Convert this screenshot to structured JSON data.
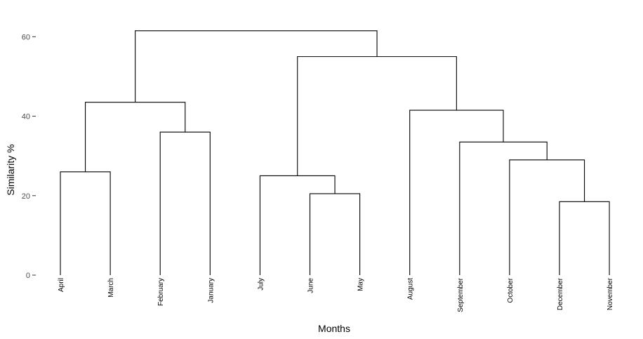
{
  "chart_data": {
    "type": "dendrogram",
    "title": "",
    "xlabel": "Months",
    "ylabel": "Similarity %",
    "ylim": [
      0,
      62
    ],
    "yticks": [
      0,
      20,
      40,
      60
    ],
    "grid": false,
    "legend": "none",
    "line_color": "#000000",
    "leaves": [
      "April",
      "March",
      "February",
      "January",
      "July",
      "June",
      "May",
      "August",
      "September",
      "October",
      "December",
      "November"
    ],
    "merges": [
      {
        "left": "April",
        "right": "March",
        "height": 26
      },
      {
        "left": "February",
        "right": "January",
        "height": 36
      },
      {
        "left": [
          "April",
          "March"
        ],
        "right": [
          "February",
          "January"
        ],
        "height": 43.5
      },
      {
        "left": "June",
        "right": "May",
        "height": 20.5
      },
      {
        "left": "July",
        "right": [
          "June",
          "May"
        ],
        "height": 25
      },
      {
        "left": "December",
        "right": "November",
        "height": 18.5
      },
      {
        "left": "October",
        "right": [
          "December",
          "November"
        ],
        "height": 29
      },
      {
        "left": "September",
        "right": [
          "October",
          "December",
          "November"
        ],
        "height": 33.5
      },
      {
        "left": "August",
        "right": [
          "September",
          "October",
          "December",
          "November"
        ],
        "height": 41.5
      },
      {
        "left": [
          "July",
          "June",
          "May"
        ],
        "right": [
          "August",
          "September",
          "October",
          "December",
          "November"
        ],
        "height": 55
      },
      {
        "left": [
          "April",
          "March",
          "February",
          "January"
        ],
        "right": [
          "July",
          "June",
          "May",
          "August",
          "September",
          "October",
          "December",
          "November"
        ],
        "height": 61.5
      }
    ]
  }
}
